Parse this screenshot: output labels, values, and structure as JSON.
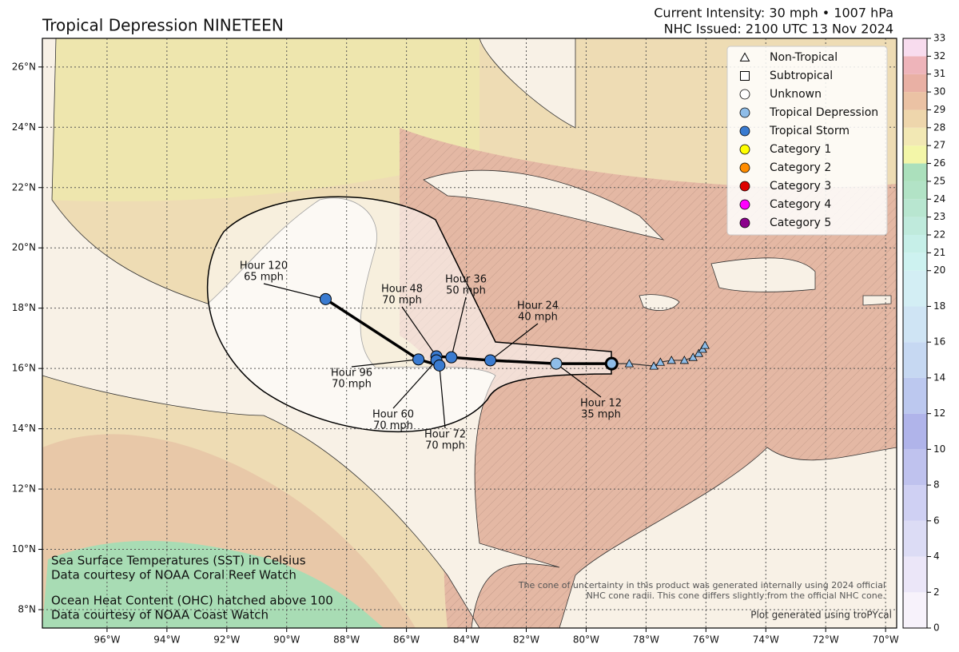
{
  "header": {
    "title": "Tropical Depression NINETEEN",
    "intensity": "Current Intensity: 30 mph • 1007 hPa",
    "issued": "NHC Issued: 2100 UTC 13 Nov 2024"
  },
  "map": {
    "xlim": [
      -98.16,
      -69.63
    ],
    "ylim": [
      7.39,
      26.95
    ],
    "grid": true,
    "xticks": [
      {
        "value": -96,
        "label": "96°W"
      },
      {
        "value": -94,
        "label": "94°W"
      },
      {
        "value": -92,
        "label": "92°W"
      },
      {
        "value": -90,
        "label": "90°W"
      },
      {
        "value": -88,
        "label": "88°W"
      },
      {
        "value": -86,
        "label": "86°W"
      },
      {
        "value": -84,
        "label": "84°W"
      },
      {
        "value": -82,
        "label": "82°W"
      },
      {
        "value": -80,
        "label": "80°W"
      },
      {
        "value": -78,
        "label": "78°W"
      },
      {
        "value": -76,
        "label": "76°W"
      },
      {
        "value": -74,
        "label": "74°W"
      },
      {
        "value": -72,
        "label": "72°W"
      },
      {
        "value": -70,
        "label": "70°W"
      }
    ],
    "yticks": [
      {
        "value": 8,
        "label": "8°N"
      },
      {
        "value": 10,
        "label": "10°N"
      },
      {
        "value": 12,
        "label": "12°N"
      },
      {
        "value": 14,
        "label": "14°N"
      },
      {
        "value": 16,
        "label": "16°N"
      },
      {
        "value": 18,
        "label": "18°N"
      },
      {
        "value": 20,
        "label": "20°N"
      },
      {
        "value": 22,
        "label": "22°N"
      },
      {
        "value": 24,
        "label": "24°N"
      },
      {
        "value": 26,
        "label": "26°N"
      }
    ]
  },
  "legend": [
    {
      "label": "Non-Tropical",
      "marker": "triangle",
      "color": "#ffffff"
    },
    {
      "label": "Subtropical",
      "marker": "square",
      "color": "#ffffff"
    },
    {
      "label": "Unknown",
      "marker": "circle",
      "color": "#ffffff"
    },
    {
      "label": "Tropical Depression",
      "marker": "circle",
      "color": "#8fbde8"
    },
    {
      "label": "Tropical Storm",
      "marker": "circle",
      "color": "#3a7bd0"
    },
    {
      "label": "Category 1",
      "marker": "circle",
      "color": "#ffff00"
    },
    {
      "label": "Category 2",
      "marker": "circle",
      "color": "#ff8c00"
    },
    {
      "label": "Category 3",
      "marker": "circle",
      "color": "#dd0000"
    },
    {
      "label": "Category 4",
      "marker": "circle",
      "color": "#ff00ff"
    },
    {
      "label": "Category 5",
      "marker": "circle",
      "color": "#8b008b"
    }
  ],
  "track": {
    "past": {
      "color": "#8fbde8",
      "lon": [
        -78.56,
        -77.74,
        -77.52,
        -77.15,
        -76.72,
        -76.43,
        -76.24,
        -76.11,
        -76.03
      ],
      "lat": [
        16.16,
        16.08,
        16.21,
        16.27,
        16.27,
        16.37,
        16.5,
        16.64,
        16.77
      ]
    },
    "current": {
      "lon": -79.15,
      "lat": 16.16,
      "color": "#8fbde8"
    },
    "forecast": [
      {
        "hour": "Hour 12",
        "wind": "35 mph",
        "lon": -81.0,
        "lat": 16.16,
        "color": "#8fbde8"
      },
      {
        "hour": "Hour 24",
        "wind": "40 mph",
        "lon": -83.2,
        "lat": 16.27,
        "color": "#3a7bd0"
      },
      {
        "hour": "Hour 36",
        "wind": "50 mph",
        "lon": -84.5,
        "lat": 16.37,
        "color": "#3a7bd0"
      },
      {
        "hour": "Hour 48",
        "wind": "70 mph",
        "lon": -85.0,
        "lat": 16.4,
        "color": "#3a7bd0"
      },
      {
        "hour": "Hour 60",
        "wind": "70 mph",
        "lon": -85.0,
        "lat": 16.27,
        "color": "#3a7bd0"
      },
      {
        "hour": "Hour 72",
        "wind": "70 mph",
        "lon": -84.9,
        "lat": 16.1,
        "color": "#3a7bd0"
      },
      {
        "hour": "Hour 96",
        "wind": "70 mph",
        "lon": -85.6,
        "lat": 16.3,
        "color": "#3a7bd0"
      },
      {
        "hour": "Hour 120",
        "wind": "65 mph",
        "lon": -88.7,
        "lat": 18.3,
        "color": "#3a7bd0"
      }
    ]
  },
  "colorbar": {
    "levels": [
      0,
      2,
      4,
      6,
      8,
      10,
      12,
      14,
      16,
      18,
      20,
      21,
      22,
      23,
      24,
      25,
      26,
      27,
      28,
      29,
      30,
      31,
      32,
      33
    ],
    "colors": [
      "#f7f2fb",
      "#ebe6f8",
      "#dcdcf5",
      "#cfd0f3",
      "#bfc2ee",
      "#b0b4ea",
      "#bcc8ef",
      "#c6d8f2",
      "#cfe4f4",
      "#d3eef4",
      "#cdf2f0",
      "#c6efe8",
      "#bfeadc",
      "#b8e6d0",
      "#b2e3c6",
      "#abe0bc",
      "#f3f6a8",
      "#f2e8b4",
      "#eed6ac",
      "#ebc2a4",
      "#e9b0a4",
      "#eeb4ba",
      "#f8dcee"
    ]
  },
  "notes": {
    "sst": "Sea Surface Temperatures (SST) in Celsius",
    "sst_source": "Data courtesy of NOAA Coral Reef Watch",
    "ohc": "Ocean Heat Content (OHC) hatched above 100",
    "ohc_source": "Data courtesy of NOAA Coast Watch",
    "cone_1": "The cone of uncertainty in this product was generated internally using 2024 official",
    "cone_2": "NHC cone radii. This cone differs slightly from the official NHC cone.",
    "credit": "Plot generated using troPYcal"
  }
}
